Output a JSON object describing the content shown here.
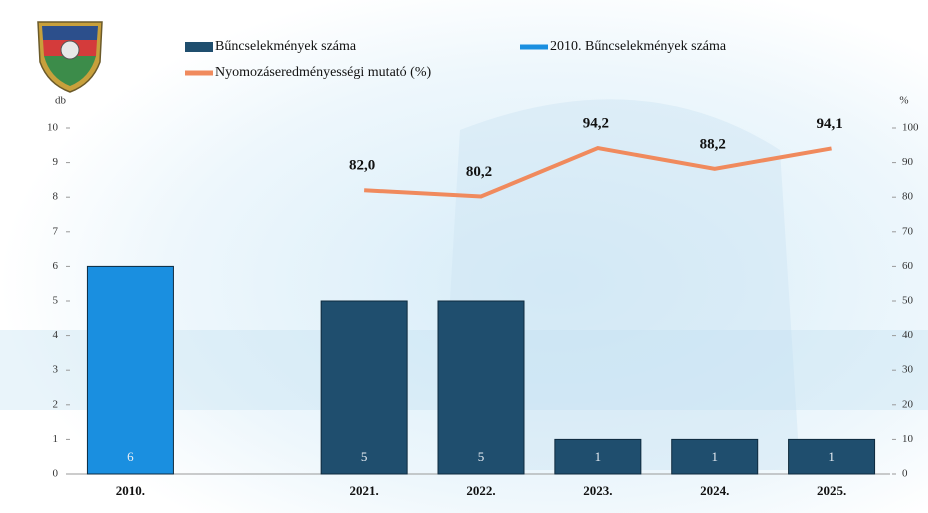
{
  "chart_data": {
    "type": "bar",
    "y_label": "db",
    "y2_label": "%",
    "categories": [
      "2010.",
      null,
      "2021.",
      "2022.",
      "2023.",
      "2024.",
      "2025."
    ],
    "series": [
      {
        "name": "Bűncselekmények száma",
        "color": "#1f4e6e",
        "values": [
          null,
          null,
          5,
          5,
          1,
          1,
          1
        ]
      },
      {
        "name": "2010. Bűncselekmények száma",
        "color": "#1a8fe0",
        "values": [
          6,
          null,
          null,
          null,
          null,
          null,
          null
        ]
      },
      {
        "name": "Nyomozáseredményességi mutató (%)",
        "color": "#f08a5d",
        "type": "line",
        "axis": "y2",
        "values": [
          null,
          null,
          82.0,
          80.2,
          94.2,
          88.2,
          94.1
        ],
        "value_labels": [
          null,
          null,
          "82,0",
          "80,2",
          "94,2",
          "88,2",
          "94,1"
        ]
      }
    ],
    "ylim": [
      0,
      10
    ],
    "yticks": [
      0,
      1,
      2,
      3,
      4,
      5,
      6,
      7,
      8,
      9,
      10
    ],
    "y2lim": [
      0,
      100
    ],
    "y2ticks": [
      0,
      10,
      20,
      30,
      40,
      50,
      60,
      70,
      80,
      90,
      100
    ]
  }
}
